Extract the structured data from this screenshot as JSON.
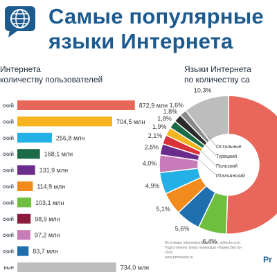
{
  "header": {
    "title_line1": "Самые популярные",
    "title_line2": "языки Интернета"
  },
  "left_subtitle": {
    "line1": "Интернета",
    "line2": "количеству пользователей"
  },
  "right_subtitle": {
    "line1": "Языки Интернета",
    "line2": "по количеству са"
  },
  "source": {
    "line1": "Источники: internetworldstats.com, w3techs.com",
    "line2": "Подготовлено: Бюро переводов «Прима Виста»",
    "line3": "2016",
    "line4": "www.primavista.ru"
  },
  "brand": "Pr",
  "chart_data": [
    {
      "type": "bar",
      "orientation": "horizontal",
      "categories": [
        "ский",
        "ский",
        "ский",
        "ский",
        "ский",
        "ский",
        "ский",
        "ский",
        "ский",
        "ский",
        "ные"
      ],
      "values": [
        872.9,
        704.5,
        256.8,
        168.1,
        131.9,
        114.9,
        103.1,
        98.9,
        97.2,
        83.7,
        734.0
      ],
      "value_labels": [
        "872,9 млн",
        "704,5 млн",
        "256,8 млн",
        "168,1 млн",
        "131,9 млн",
        "114,9 млн",
        "103,1 млн",
        "98,9 млн",
        "97,2 млн",
        "83,7 млн",
        "734,0 млн"
      ],
      "colors": [
        "#e8665a",
        "#f4b31f",
        "#23b0e6",
        "#1a6b46",
        "#6b2d8c",
        "#f28b1d",
        "#6fbf3f",
        "#8c1b3c",
        "#c77bb8",
        "#1f6fae",
        "#bdbdbd"
      ],
      "xlim": [
        0,
        900
      ]
    },
    {
      "type": "pie",
      "style": "donut",
      "slices": [
        {
          "label": "",
          "value": 49.0,
          "color": "#e8665a"
        },
        {
          "label": "6,4%",
          "value": 6.4,
          "color": "#6fbf3f"
        },
        {
          "label": "5,6%",
          "value": 5.6,
          "color": "#1f6fae"
        },
        {
          "label": "5,1%",
          "value": 5.1,
          "color": "#f28b1d"
        },
        {
          "label": "4,9%",
          "value": 4.9,
          "color": "#23b0e6"
        },
        {
          "label": "4,0%",
          "value": 4.0,
          "color": "#c77bb8"
        },
        {
          "label": "2,5%",
          "value": 2.5,
          "color": "#6b2d8c"
        },
        {
          "label": "2,1%",
          "value": 2.1,
          "color": "#d9323a"
        },
        {
          "label": "1,9%",
          "value": 1.9,
          "color": "#f4b31f"
        },
        {
          "label": "1,8%",
          "value": 1.8,
          "color": "#1a6b46"
        },
        {
          "label": "1,8%",
          "value": 1.8,
          "color": "#2b2b2b"
        },
        {
          "label": "1,6%",
          "value": 1.6,
          "color": "#8a8a8a"
        },
        {
          "label": "10,3%",
          "value": 10.3,
          "color": "#bdbdbd"
        }
      ],
      "annotations": [
        "Остальные",
        "Турецкий",
        "Польский",
        "Итальянский"
      ]
    }
  ]
}
